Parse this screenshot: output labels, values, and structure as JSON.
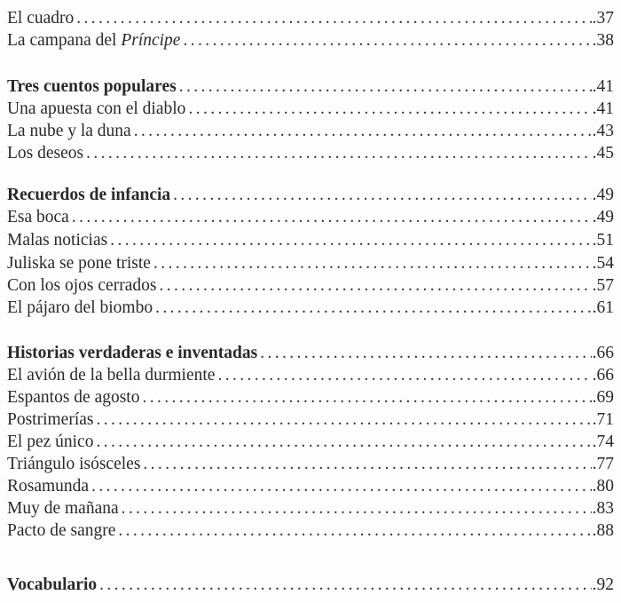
{
  "entries": [
    {
      "title": "El cuadro",
      "page": ".37",
      "bold": false
    },
    {
      "title": "La campana del ",
      "title_italic": "Príncipe",
      "page": ".38",
      "bold": false
    },
    {
      "title": "Tres cuentos populares",
      "page": ".41",
      "bold": true
    },
    {
      "title": "Una apuesta con el diablo",
      "page": ".41",
      "bold": false
    },
    {
      "title": "La nube y la duna",
      "page": ".43",
      "bold": false
    },
    {
      "title": "Los deseos",
      "page": ".45",
      "bold": false
    },
    {
      "title": "Recuerdos de infancia",
      "page": ".49",
      "bold": true
    },
    {
      "title": "Esa boca",
      "page": ".49",
      "bold": false
    },
    {
      "title": "Malas noticias",
      "page": ".51",
      "bold": false
    },
    {
      "title": "Juliska se pone triste",
      "page": ".54",
      "bold": false
    },
    {
      "title": "Con los ojos cerrados",
      "page": ".57",
      "bold": false
    },
    {
      "title": "El pájaro del biombo",
      "page": ".61",
      "bold": false
    },
    {
      "title": "Historias verdaderas e inventadas",
      "page": ".66",
      "bold": true
    },
    {
      "title": "El avión de la bella durmiente",
      "page": ".66",
      "bold": false
    },
    {
      "title": "Espantos de agosto",
      "page": ".69",
      "bold": false
    },
    {
      "title": "Postrimerías",
      "page": ".71",
      "bold": false
    },
    {
      "title": "El pez único",
      "page": ".74",
      "bold": false
    },
    {
      "title": "Triángulo isósceles",
      "page": ".77",
      "bold": false
    },
    {
      "title": "Rosamunda",
      "page": ".80",
      "bold": false
    },
    {
      "title": "Muy de mañana",
      "page": ".83",
      "bold": false
    },
    {
      "title": "Pacto de sangre",
      "page": ".88",
      "bold": false
    },
    {
      "title": "Vocabulario",
      "page": ".92",
      "bold": true
    }
  ]
}
